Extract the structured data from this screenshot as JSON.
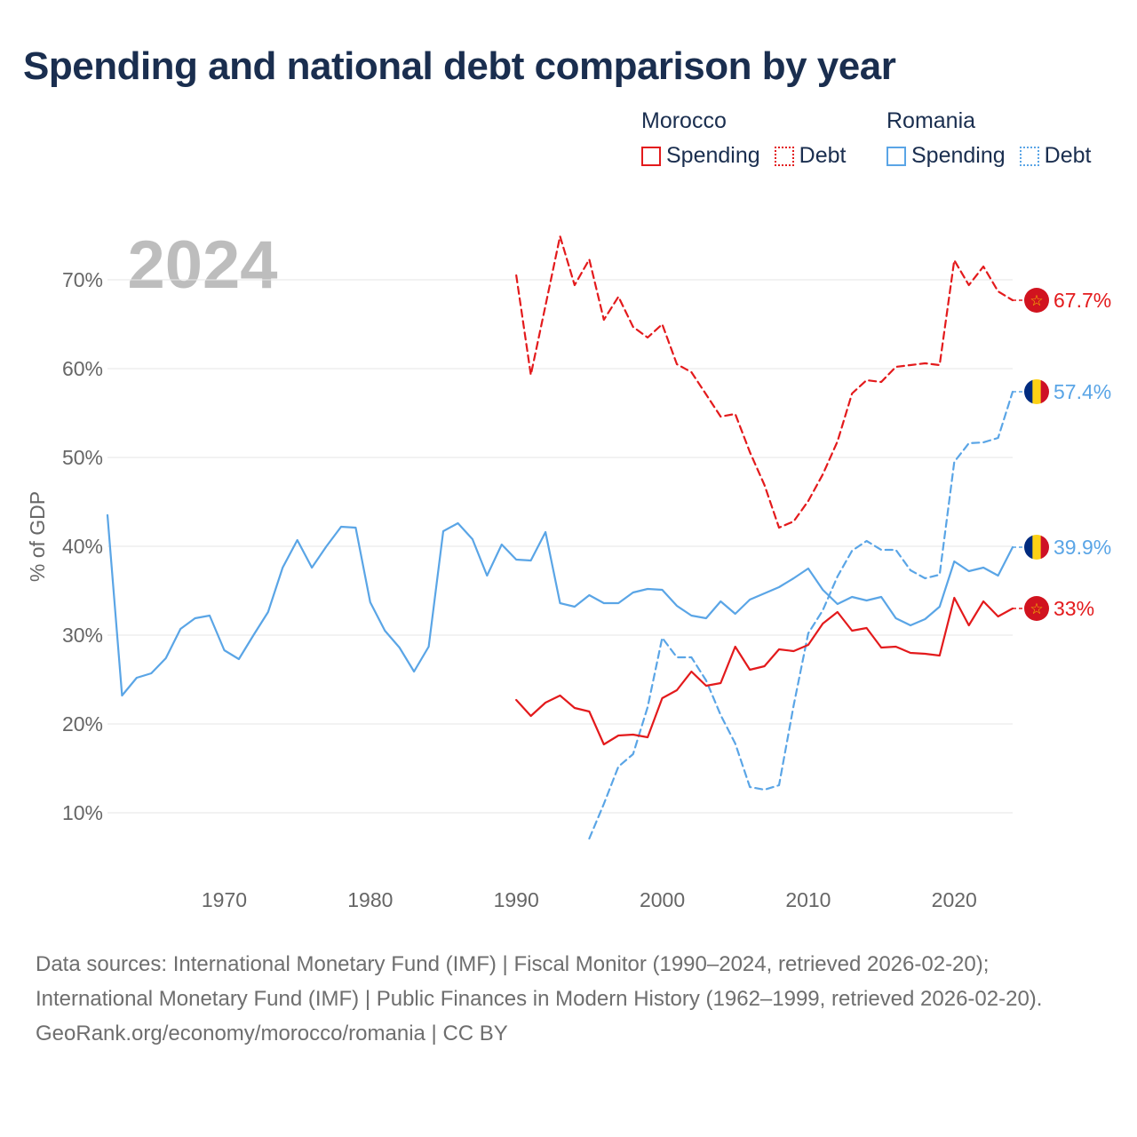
{
  "title": "Spending and national debt comparison by year",
  "legend": {
    "groups": [
      {
        "name": "Morocco",
        "color": "#e31a1c",
        "items": [
          {
            "label": "Spending",
            "style": "solid"
          },
          {
            "label": "Debt",
            "style": "dotted"
          }
        ]
      },
      {
        "name": "Romania",
        "color": "#5aa5e6",
        "items": [
          {
            "label": "Spending",
            "style": "solid"
          },
          {
            "label": "Debt",
            "style": "dotted"
          }
        ]
      }
    ]
  },
  "sources": {
    "line1": "Data sources: International Monetary Fund (IMF) | Fiscal Monitor (1990–2024, retrieved 2026-02-20); International Monetary Fund (IMF) | Public Finances in Modern History (1962–1999, retrieved 2026-02-20).",
    "line2": "GeoRank.org/economy/morocco/romania | CC BY"
  },
  "chart_data": {
    "type": "line",
    "year_label": "2024",
    "ylabel": "% of GDP",
    "xlabel": "",
    "xlim": [
      1962,
      2024
    ],
    "ylim": [
      3,
      77
    ],
    "x_ticks": [
      1970,
      1980,
      1990,
      2000,
      2010,
      2020
    ],
    "y_ticks": [
      10,
      20,
      30,
      40,
      50,
      60,
      70
    ],
    "y_tick_labels": [
      "10%",
      "20%",
      "30%",
      "40%",
      "50%",
      "60%",
      "70%"
    ],
    "grid": true,
    "series": [
      {
        "name": "Romania Spending",
        "country": "Romania",
        "color": "#5aa5e6",
        "dash": "solid",
        "end_label": "39.9%",
        "flag": "romania",
        "x": [
          1962,
          1963,
          1964,
          1965,
          1966,
          1967,
          1968,
          1969,
          1970,
          1971,
          1972,
          1973,
          1974,
          1975,
          1976,
          1977,
          1978,
          1979,
          1980,
          1981,
          1982,
          1983,
          1984,
          1985,
          1986,
          1987,
          1988,
          1989,
          1990,
          1991,
          1992,
          1993,
          1994,
          1995,
          1996,
          1997,
          1998,
          1999,
          2000,
          2001,
          2002,
          2003,
          2004,
          2005,
          2006,
          2007,
          2008,
          2009,
          2010,
          2011,
          2012,
          2013,
          2014,
          2015,
          2016,
          2017,
          2018,
          2019,
          2020,
          2021,
          2022,
          2023,
          2024
        ],
        "values": [
          43.5,
          23.2,
          25.2,
          25.7,
          27.4,
          30.7,
          31.9,
          32.2,
          28.3,
          27.3,
          30.0,
          32.6,
          37.6,
          40.7,
          37.6,
          40.0,
          42.2,
          42.1,
          33.7,
          30.5,
          28.6,
          25.9,
          28.7,
          41.7,
          42.6,
          40.8,
          36.7,
          40.2,
          38.5,
          38.4,
          41.6,
          33.6,
          33.2,
          34.5,
          33.6,
          33.6,
          34.8,
          35.2,
          35.1,
          33.3,
          32.2,
          31.9,
          33.8,
          32.4,
          34.0,
          34.7,
          35.4,
          36.4,
          37.5,
          35.1,
          33.5,
          34.3,
          33.9,
          34.3,
          31.9,
          31.1,
          31.8,
          33.2,
          38.3,
          37.2,
          37.6,
          36.7,
          39.9
        ]
      },
      {
        "name": "Romania Debt",
        "country": "Romania",
        "color": "#5aa5e6",
        "dash": "dashed",
        "end_label": "57.4%",
        "flag": "romania",
        "x": [
          1995,
          1996,
          1997,
          1998,
          1999,
          2000,
          2001,
          2002,
          2003,
          2004,
          2005,
          2006,
          2007,
          2008,
          2009,
          2010,
          2011,
          2012,
          2013,
          2014,
          2015,
          2016,
          2017,
          2018,
          2019,
          2020,
          2021,
          2022,
          2023,
          2024
        ],
        "values": [
          7.1,
          11.0,
          15.2,
          16.6,
          21.9,
          29.7,
          27.5,
          27.5,
          24.9,
          21.0,
          17.8,
          12.9,
          12.6,
          13.1,
          22.1,
          30.2,
          32.8,
          36.6,
          39.5,
          40.6,
          39.6,
          39.6,
          37.3,
          36.4,
          36.8,
          49.5,
          51.6,
          51.7,
          52.2,
          57.4
        ]
      },
      {
        "name": "Morocco Spending",
        "country": "Morocco",
        "color": "#e31a1c",
        "dash": "solid",
        "end_label": "33%",
        "flag": "morocco",
        "x": [
          1990,
          1991,
          1992,
          1993,
          1994,
          1995,
          1996,
          1997,
          1998,
          1999,
          2000,
          2001,
          2002,
          2003,
          2004,
          2005,
          2006,
          2007,
          2008,
          2009,
          2010,
          2011,
          2012,
          2013,
          2014,
          2015,
          2016,
          2017,
          2018,
          2019,
          2020,
          2021,
          2022,
          2023,
          2024
        ],
        "values": [
          22.7,
          20.9,
          22.4,
          23.2,
          21.8,
          21.4,
          17.7,
          18.7,
          18.8,
          18.5,
          22.9,
          23.8,
          25.9,
          24.3,
          24.6,
          28.7,
          26.1,
          26.5,
          28.4,
          28.2,
          28.9,
          31.3,
          32.6,
          30.5,
          30.8,
          28.6,
          28.7,
          28.0,
          27.9,
          27.7,
          34.2,
          31.1,
          33.8,
          32.1,
          33.0
        ]
      },
      {
        "name": "Morocco Debt",
        "country": "Morocco",
        "color": "#e31a1c",
        "dash": "dashed",
        "end_label": "67.7%",
        "flag": "morocco",
        "x": [
          1990,
          1991,
          1992,
          1993,
          1994,
          1995,
          1996,
          1997,
          1998,
          1999,
          2000,
          2001,
          2002,
          2003,
          2004,
          2005,
          2006,
          2007,
          2008,
          2009,
          2010,
          2011,
          2012,
          2013,
          2014,
          2015,
          2016,
          2017,
          2018,
          2019,
          2020,
          2021,
          2022,
          2023,
          2024
        ],
        "values": [
          70.5,
          59.3,
          67.1,
          74.9,
          69.4,
          72.3,
          65.5,
          68.1,
          64.7,
          63.5,
          65.0,
          60.5,
          59.6,
          57.1,
          54.6,
          54.9,
          50.6,
          46.9,
          42.1,
          42.8,
          45.1,
          48.1,
          51.8,
          57.2,
          58.7,
          58.5,
          60.2,
          60.4,
          60.6,
          60.4,
          72.2,
          69.4,
          71.5,
          68.7,
          67.7
        ]
      }
    ]
  }
}
